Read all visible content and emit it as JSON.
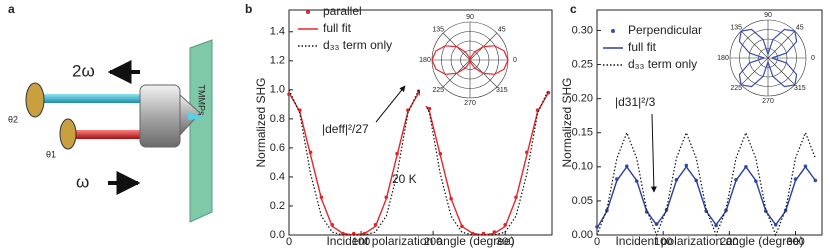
{
  "diagram": {
    "panel_label": "a",
    "beam_out": "2ω",
    "beam_in": "ω",
    "sample": "TMMPs",
    "angle_top": "θ2",
    "angle_bottom": "θ1"
  },
  "chart_data": [
    {
      "type": "line",
      "panel_label": "b",
      "x_label": "Incident polarization angle (degree)",
      "y_label": "Normalized SHG",
      "xlim": [
        0,
        365
      ],
      "xticks": [
        0,
        100,
        200,
        300
      ],
      "ylim": [
        0,
        1.55
      ],
      "yticks": [
        {
          "value": 0,
          "label": "0.0"
        },
        0.2,
        0.4,
        0.6,
        0.8,
        {
          "value": 1,
          "label": "1.0"
        },
        1.2,
        1.4
      ],
      "legend": "upper left",
      "annotations": [
        "|deff|²/27",
        "20 K"
      ],
      "x": [
        0,
        15,
        30,
        45,
        60,
        75,
        90,
        105,
        120,
        135,
        150,
        165,
        180,
        195,
        210,
        225,
        240,
        255,
        270,
        285,
        300,
        315,
        330,
        345,
        360
      ],
      "series": [
        {
          "name": "parallel",
          "color": "#d62728",
          "style": "dots",
          "values": [
            0.97,
            0.86,
            0.57,
            0.26,
            0.07,
            0.01,
            0.01,
            0.01,
            0.07,
            0.26,
            0.56,
            0.86,
            0.99,
            0.87,
            0.56,
            0.25,
            0.06,
            0.01,
            0.01,
            0.02,
            0.07,
            0.26,
            0.57,
            0.86,
            0.98
          ]
        },
        {
          "name": "full fit",
          "color": "#e8262a",
          "style": "solid",
          "values": [
            0.98,
            0.85,
            0.55,
            0.25,
            0.06,
            0.01,
            0,
            0.01,
            0.06,
            0.25,
            0.55,
            0.85,
            0.98,
            0.85,
            0.55,
            0.25,
            0.06,
            0.01,
            0,
            0.01,
            0.06,
            0.25,
            0.55,
            0.85,
            0.98
          ]
        },
        {
          "name": "d₃₃ term only",
          "color": "#111111",
          "style": "dotted",
          "values": [
            1,
            0.84,
            0.42,
            0.13,
            0.02,
            0,
            0,
            0,
            0.02,
            0.13,
            0.42,
            0.84,
            1,
            0.84,
            0.42,
            0.13,
            0.02,
            0,
            0,
            0,
            0.02,
            0.13,
            0.42,
            0.84,
            1
          ]
        }
      ]
    },
    {
      "type": "polar",
      "color": "#e8262a",
      "rlim": [
        0,
        1
      ],
      "thetaticks": [
        0,
        45,
        90,
        135,
        180,
        225,
        270,
        315
      ],
      "theta": [
        0,
        15,
        30,
        45,
        60,
        75,
        90,
        105,
        120,
        135,
        150,
        165,
        180,
        195,
        210,
        225,
        240,
        255,
        270,
        285,
        300,
        315,
        330,
        345,
        360
      ],
      "values": [
        1,
        0.93,
        0.75,
        0.5,
        0.25,
        0.07,
        0,
        0.07,
        0.25,
        0.5,
        0.75,
        0.93,
        1,
        0.93,
        0.75,
        0.5,
        0.25,
        0.07,
        0,
        0.07,
        0.25,
        0.5,
        0.75,
        0.93,
        1
      ]
    },
    {
      "type": "line",
      "panel_label": "c",
      "x_label": "Incident polarization angle (degree)",
      "y_label": "Normalized SHG",
      "xlim": [
        0,
        340
      ],
      "xticks": [
        0,
        100,
        200,
        300
      ],
      "ylim": [
        0,
        0.33
      ],
      "yticks": [
        {
          "value": 0,
          "label": "0.00"
        },
        0.05,
        {
          "value": 0.1,
          "label": "0.10"
        },
        0.15,
        {
          "value": 0.2,
          "label": "0.20"
        },
        0.25,
        {
          "value": 0.3,
          "label": "0.30"
        }
      ],
      "legend": "upper left",
      "annotations": [
        "|d31|²/3"
      ],
      "x": [
        0,
        15,
        30,
        45,
        60,
        75,
        90,
        105,
        120,
        135,
        150,
        165,
        180,
        195,
        210,
        225,
        240,
        255,
        270,
        285,
        300,
        315,
        330
      ],
      "series": [
        {
          "name": "Perpendicular",
          "color": "#3a4fb0",
          "style": "dots",
          "values": [
            0.012,
            0.036,
            0.082,
            0.101,
            0.079,
            0.034,
            0.016,
            0.037,
            0.081,
            0.102,
            0.08,
            0.035,
            0.014,
            0.036,
            0.081,
            0.1,
            0.079,
            0.035,
            0.015,
            0.036,
            0.082,
            0.101,
            0.08
          ]
        },
        {
          "name": "full fit",
          "color": "#2b3f9e",
          "style": "solid",
          "values": [
            0.01,
            0.035,
            0.08,
            0.1,
            0.08,
            0.035,
            0.015,
            0.035,
            0.08,
            0.1,
            0.08,
            0.035,
            0.015,
            0.035,
            0.08,
            0.1,
            0.08,
            0.035,
            0.015,
            0.035,
            0.08,
            0.1,
            0.08
          ]
        },
        {
          "name": "d₃₃ term only",
          "color": "#111111",
          "style": "dotted",
          "values": [
            0,
            0.0375,
            0.1125,
            0.15,
            0.1125,
            0.0375,
            0,
            0.0375,
            0.1125,
            0.15,
            0.1125,
            0.0375,
            0,
            0.0375,
            0.1125,
            0.15,
            0.1125,
            0.0375,
            0,
            0.0375,
            0.1125,
            0.15,
            0.1125
          ]
        }
      ]
    },
    {
      "type": "polar",
      "color": "#3a4fb0",
      "rlim": [
        0,
        1
      ],
      "thetaticks": [
        0,
        45,
        90,
        135,
        180,
        225,
        270,
        315
      ],
      "theta": [
        0,
        15,
        30,
        45,
        60,
        75,
        90,
        105,
        120,
        135,
        150,
        165,
        180,
        195,
        210,
        225,
        240,
        255,
        270,
        285,
        300,
        315,
        330,
        345,
        360
      ],
      "values": [
        0.1,
        0.5,
        0.87,
        1,
        0.87,
        0.5,
        0.1,
        0.5,
        0.87,
        1,
        0.87,
        0.5,
        0.1,
        0.5,
        0.87,
        1,
        0.87,
        0.5,
        0.1,
        0.5,
        0.87,
        1,
        0.87,
        0.5,
        0.1
      ]
    }
  ]
}
